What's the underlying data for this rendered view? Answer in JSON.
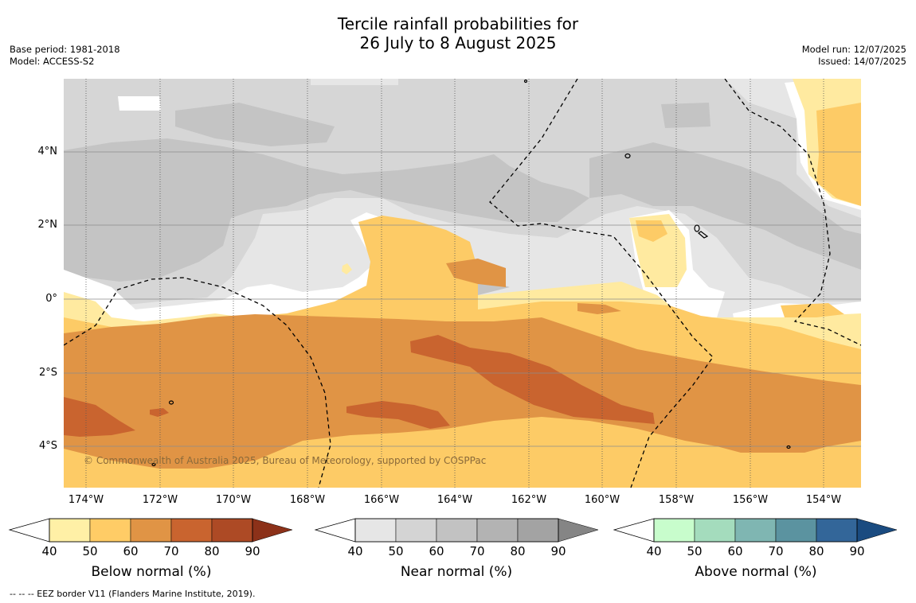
{
  "title": {
    "line1": "Tercile rainfall probabilities for",
    "line2": "26 July to 8 August 2025"
  },
  "meta": {
    "base_period": "Base period: 1981-2018",
    "model": "Model: ACCESS-S2",
    "model_run": "Model run: 12/07/2025",
    "issued": "Issued: 14/07/2025"
  },
  "map": {
    "copyright": "© Commonwealth of Australia 2025, Bureau of Meteorology, supported by COSPPac",
    "lat_labels": [
      "4°N",
      "2°N",
      "0°",
      "2°S",
      "4°S"
    ],
    "lon_labels": [
      "174°W",
      "172°W",
      "170°W",
      "168°W",
      "166°W",
      "164°W",
      "162°W",
      "160°W",
      "158°W",
      "156°W",
      "154°W"
    ],
    "colors": {
      "near_50": "#e6e6e6",
      "near_60": "#d6d6d6",
      "near_70": "#c4c4c4",
      "below_40": "#ffeaa0",
      "below_50": "#fdcb66",
      "below_60": "#e09445",
      "below_70": "#c9642f",
      "eez_line": "#000000"
    }
  },
  "colorbars": [
    {
      "label": "Below normal (%)",
      "ticks": [
        "40",
        "50",
        "60",
        "70",
        "80",
        "90"
      ],
      "colors": [
        "#fff0a6",
        "#ffcc66",
        "#e09445",
        "#c9642f",
        "#ad4a25",
        "#8c3119"
      ]
    },
    {
      "label": "Near normal (%)",
      "ticks": [
        "40",
        "50",
        "60",
        "70",
        "80",
        "90"
      ],
      "colors": [
        "#e6e6e6",
        "#d4d4d4",
        "#c2c2c2",
        "#b3b3b3",
        "#a3a3a3",
        "#858585"
      ]
    },
    {
      "label": "Above normal (%)",
      "ticks": [
        "40",
        "50",
        "60",
        "70",
        "80",
        "90"
      ],
      "colors": [
        "#c8fdcc",
        "#a4dcbd",
        "#7fb6b2",
        "#5b93a0",
        "#336699",
        "#1a4b80"
      ]
    }
  ],
  "footer": "--  --  -- EEZ border V11 (Flanders Marine Institute, 2019)."
}
